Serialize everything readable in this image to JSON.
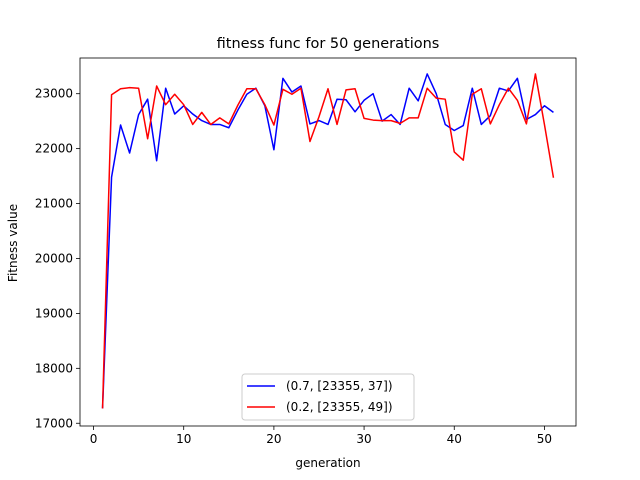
{
  "chart_data": {
    "type": "line",
    "title": "fitness func for 50 generations",
    "xlabel": "generation",
    "ylabel": "Fitness value",
    "xlim": [
      -1.5,
      53.5
    ],
    "ylim": [
      16950,
      23650
    ],
    "xticks": [
      0,
      10,
      20,
      30,
      40,
      50
    ],
    "yticks": [
      17000,
      18000,
      19000,
      20000,
      21000,
      22000,
      23000
    ],
    "grid": false,
    "legend_position": "bottom-center",
    "x": [
      1,
      2,
      3,
      4,
      5,
      6,
      7,
      8,
      9,
      10,
      11,
      12,
      13,
      14,
      15,
      16,
      17,
      18,
      19,
      20,
      21,
      22,
      23,
      24,
      25,
      26,
      27,
      28,
      29,
      30,
      31,
      32,
      33,
      34,
      35,
      36,
      37,
      38,
      39,
      40,
      41,
      42,
      43,
      44,
      45,
      46,
      47,
      48,
      49,
      50,
      51
    ],
    "series": [
      {
        "name": "(0.7, [23355, 37])",
        "color": "#0000ff",
        "values": [
          17270,
          21480,
          22430,
          21920,
          22620,
          22900,
          21780,
          23100,
          22630,
          22780,
          22630,
          22510,
          22440,
          22440,
          22380,
          22700,
          22990,
          23100,
          22780,
          21980,
          23280,
          23030,
          23140,
          22450,
          22510,
          22440,
          22900,
          22890,
          22670,
          22880,
          23000,
          22500,
          22620,
          22440,
          23100,
          22870,
          23360,
          23000,
          22440,
          22330,
          22420,
          23100,
          22440,
          22600,
          23100,
          23050,
          23280,
          22530,
          22620,
          22780,
          22660
        ]
      },
      {
        "name": "(0.2, [23355, 49])",
        "color": "#ff0000",
        "values": [
          17270,
          22980,
          23090,
          23110,
          23100,
          22180,
          23140,
          22800,
          22990,
          22800,
          22440,
          22660,
          22440,
          22560,
          22450,
          22790,
          23090,
          23090,
          22800,
          22430,
          23080,
          22990,
          23100,
          22130,
          22580,
          23090,
          22440,
          23070,
          23090,
          22550,
          22520,
          22510,
          22510,
          22460,
          22560,
          22560,
          23100,
          22920,
          22900,
          21940,
          21790,
          22990,
          23090,
          22450,
          22800,
          23100,
          22880,
          22450,
          23360,
          22440,
          21470
        ]
      }
    ]
  }
}
